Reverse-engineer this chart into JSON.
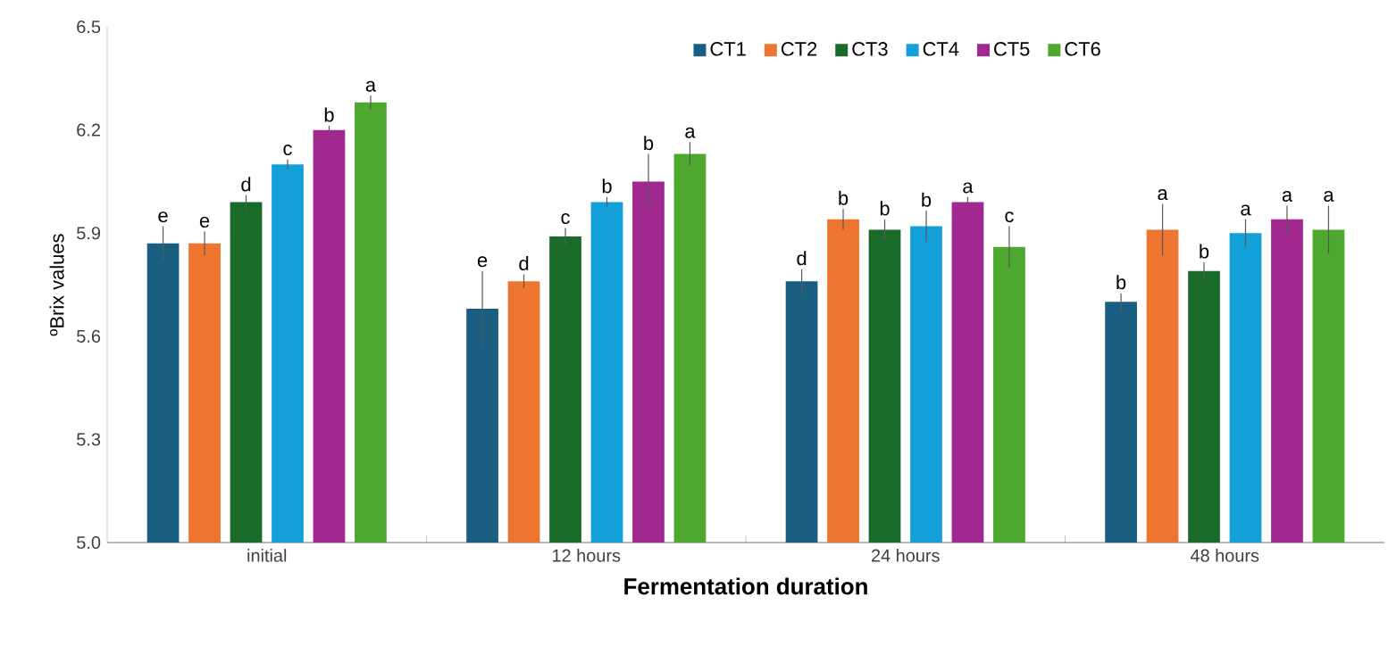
{
  "chart_data": {
    "type": "bar",
    "xlabel": "Fermentation duration",
    "ylabel": "ºBrix values",
    "categories": [
      "initial",
      "12 hours",
      "24 hours",
      "48 hours"
    ],
    "ylim": [
      5.0,
      6.5
    ],
    "yticks": [
      {
        "value": 5.0,
        "label": "5.0"
      },
      {
        "value": 5.3,
        "label": "5.3"
      },
      {
        "value": 5.6,
        "label": "5.6"
      },
      {
        "value": 5.9,
        "label": "5.9"
      },
      {
        "value": 6.2,
        "label": "6.2"
      },
      {
        "value": 6.5,
        "label": "6.5"
      }
    ],
    "legend": "top",
    "series": [
      {
        "name": "CT1",
        "color": "#1a5e82",
        "values": [
          5.87,
          5.68,
          5.76,
          5.7
        ],
        "errors": [
          0.05,
          0.11,
          0.035,
          0.025
        ],
        "value_labels": [
          "e",
          "e",
          "d",
          "b"
        ]
      },
      {
        "name": "CT2",
        "color": "#ee7530",
        "values": [
          5.87,
          5.76,
          5.94,
          5.91
        ],
        "errors": [
          0.035,
          0.02,
          0.03,
          0.075
        ],
        "value_labels": [
          "e",
          "d",
          "b",
          "a"
        ]
      },
      {
        "name": "CT3",
        "color": "#1a6b2a",
        "values": [
          5.99,
          5.89,
          5.91,
          5.79
        ],
        "errors": [
          0.02,
          0.025,
          0.03,
          0.025
        ],
        "value_labels": [
          "d",
          "c",
          "b",
          "b"
        ]
      },
      {
        "name": "CT4",
        "color": "#13a0d9",
        "values": [
          6.1,
          5.99,
          5.92,
          5.9
        ],
        "errors": [
          0.015,
          0.015,
          0.045,
          0.04
        ],
        "value_labels": [
          "c",
          "b",
          "b",
          "a"
        ]
      },
      {
        "name": "CT5",
        "color": "#a0288f",
        "values": [
          6.2,
          6.05,
          5.99,
          5.94
        ],
        "errors": [
          0.012,
          0.08,
          0.015,
          0.04
        ],
        "value_labels": [
          "b",
          "b",
          "a",
          "a"
        ]
      },
      {
        "name": "CT6",
        "color": "#4ea72e",
        "values": [
          6.28,
          6.13,
          5.86,
          5.91
        ],
        "errors": [
          0.02,
          0.035,
          0.06,
          0.07
        ],
        "value_labels": [
          "a",
          "a",
          "c",
          "a"
        ]
      }
    ]
  }
}
